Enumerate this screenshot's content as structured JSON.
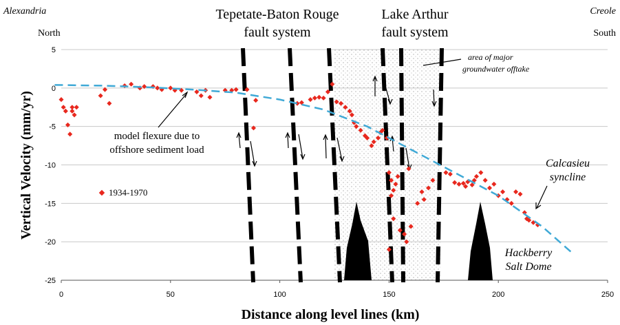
{
  "chart_data": {
    "type": "scatter",
    "xlabel": "Distance along level lines (km)",
    "ylabel": "Vertical Velocity (mm/yr)",
    "xlim": [
      0,
      250
    ],
    "ylim": [
      -25,
      5
    ],
    "xticks": [
      0,
      50,
      100,
      150,
      200,
      250
    ],
    "yticks": [
      5,
      0,
      -5,
      -10,
      -15,
      -20,
      -25
    ],
    "grid": true,
    "series": [
      {
        "name": "1934-1970",
        "color": "#e8281e",
        "x": [
          0,
          1,
          2,
          3,
          4,
          5,
          5,
          7,
          6,
          18,
          20,
          22,
          29,
          32,
          36,
          38,
          42,
          44,
          46,
          50,
          52,
          55,
          62,
          64,
          66,
          68,
          75,
          78,
          80,
          85,
          89,
          88,
          108,
          110,
          114,
          116,
          118,
          120,
          122,
          124,
          126,
          128,
          130,
          132,
          133,
          134,
          135,
          137,
          139,
          140,
          142,
          143,
          145,
          146,
          147,
          149,
          150,
          151,
          152,
          153,
          154,
          151,
          150,
          152,
          155,
          157,
          158,
          160,
          163,
          165,
          166,
          168,
          170,
          176,
          178,
          180,
          182,
          184,
          185,
          186,
          188,
          189,
          190,
          192,
          194,
          196,
          198,
          200,
          202,
          204,
          206,
          208,
          210,
          212,
          213,
          214,
          216,
          218,
          159
        ],
        "values": [
          -1.5,
          -2.5,
          -3,
          -4.8,
          -6,
          -3,
          -2.5,
          -2.5,
          -3.5,
          -1,
          -0.2,
          -2,
          0.3,
          0.5,
          0,
          0.2,
          0.2,
          0,
          -0.2,
          0,
          -0.3,
          -0.3,
          -0.5,
          -1,
          -0.3,
          -1.2,
          -0.3,
          -0.3,
          -0.2,
          -0.2,
          -1.6,
          -5.2,
          -2,
          -1.9,
          -1.5,
          -1.3,
          -1.2,
          -1.3,
          -0.5,
          0.5,
          -1.8,
          -2,
          -2.5,
          -3,
          -3.5,
          -4.5,
          -5,
          -5.5,
          -6.2,
          -6.5,
          -7.5,
          -7,
          -6.5,
          -5.8,
          -5.5,
          -6.5,
          -11,
          -12,
          -13.3,
          -12.5,
          -11.5,
          -14,
          -21,
          -17,
          -18.5,
          -19,
          -20,
          -18,
          -15,
          -13.5,
          -14.5,
          -13,
          -12,
          -11,
          -11.2,
          -12.3,
          -12.5,
          -12.4,
          -12.8,
          -12.2,
          -12.6,
          -12,
          -11.5,
          -11,
          -12,
          -13,
          -12.5,
          -14,
          -13.5,
          -14.5,
          -15,
          -13.5,
          -13.8,
          -16.2,
          -17,
          -17.2,
          -17.5,
          -17.8,
          -10.5
        ]
      },
      {
        "type": "line",
        "color": "#3fa9d6",
        "x": [
          -3,
          20,
          40,
          60,
          80,
          100,
          120,
          140,
          160,
          180,
          200,
          220,
          234
        ],
        "values": [
          0.4,
          0.3,
          0.1,
          -0.2,
          -0.6,
          -1.5,
          -2.8,
          -5,
          -8,
          -11,
          -14,
          -18,
          -21.5
        ]
      }
    ],
    "annotations": [
      [
        "Alexandria"
      ],
      [
        "North"
      ],
      [
        "Creole"
      ],
      [
        "South"
      ],
      [
        "Tepetate-Baton Rouge",
        "fault system"
      ],
      [
        "Lake Arthur",
        "fault system"
      ],
      [
        "area of major",
        "groundwater offtake"
      ],
      [
        "model flexure due to",
        "offshore sediment load"
      ],
      [
        "Calcasieu",
        "syncline"
      ],
      [
        "Hackberry",
        "Salt Dome"
      ]
    ]
  }
}
